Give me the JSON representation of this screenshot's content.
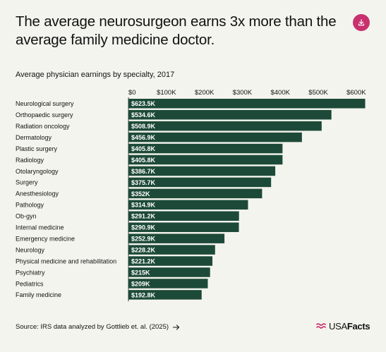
{
  "header": {
    "title": "The average neurosurgeon earns 3x more than the average family medicine doctor.",
    "download_icon": "download-icon",
    "accent_color": "#c8316e"
  },
  "footer": {
    "source": "Source: IRS data analyzed by Gottlieb et. al. (2025)",
    "source_icon": "arrow-right-icon",
    "logo": {
      "usa": "USA",
      "facts": "Facts"
    }
  },
  "chart_data": {
    "type": "bar",
    "orientation": "horizontal",
    "title": "Average physician earnings by specialty, 2017",
    "xlim": [
      0,
      630000
    ],
    "x_ticks": [
      {
        "value": 0,
        "label": "$0"
      },
      {
        "value": 100000,
        "label": "$100K"
      },
      {
        "value": 200000,
        "label": "$200K"
      },
      {
        "value": 300000,
        "label": "$300K"
      },
      {
        "value": 400000,
        "label": "$400K"
      },
      {
        "value": 500000,
        "label": "$500K"
      },
      {
        "value": 600000,
        "label": "$600K"
      }
    ],
    "bar_color": "#1d4a38",
    "categories": [
      "Neurological surgery",
      "Orthopaedic surgery",
      "Radiation oncology",
      "Dermatology",
      "Plastic surgery",
      "Radiology",
      "Otolaryngology",
      "Surgery",
      "Anesthesiology",
      "Pathology",
      "Ob-gyn",
      "Internal medicine",
      "Emergency medicine",
      "Neurology",
      "Physical medicine and rehabilitation",
      "Psychiatry",
      "Pediatrics",
      "Family medicine"
    ],
    "values": [
      623500,
      534600,
      508900,
      456900,
      405800,
      405800,
      386700,
      375700,
      352000,
      314900,
      291200,
      290900,
      252900,
      228200,
      221200,
      215000,
      209000,
      192800
    ],
    "value_labels": [
      "$623.5K",
      "$534.6K",
      "$508.9K",
      "$456.9K",
      "$405.8K",
      "$405.8K",
      "$386.7K",
      "$375.7K",
      "$352K",
      "$314.9K",
      "$291.2K",
      "$290.9K",
      "$252.9K",
      "$228.2K",
      "$221.2K",
      "$215K",
      "$209K",
      "$192.8K"
    ]
  }
}
